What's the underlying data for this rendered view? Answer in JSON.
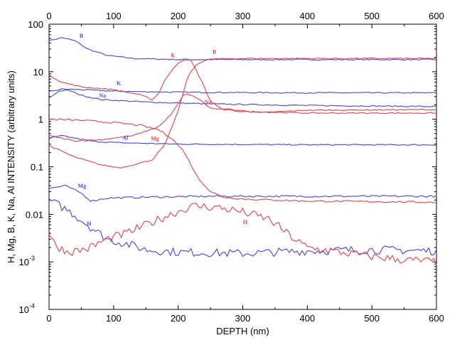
{
  "chart_data": {
    "type": "line",
    "title": "",
    "xlabel": "DEPTH (nm)",
    "ylabel": "H, Mg, B, K, Na, Al INTENSITY (arbitrary units)",
    "xlim": [
      0,
      600
    ],
    "ylim": [
      0.0001,
      100
    ],
    "yscale": "log",
    "grid": false,
    "x_ticks": [
      "0",
      "100",
      "200",
      "300",
      "400",
      "500",
      "600"
    ],
    "x_ticks_top": [
      "0",
      "100",
      "200",
      "300",
      "400",
      "500",
      "600"
    ],
    "y_ticks": [
      {
        "value": 100,
        "label": "100",
        "exp": ""
      },
      {
        "value": 10,
        "label": "10",
        "exp": ""
      },
      {
        "value": 1,
        "label": "1",
        "exp": ""
      },
      {
        "value": 0.1,
        "label": "0.1",
        "exp": ""
      },
      {
        "value": 0.01,
        "label": "0.01",
        "exp": ""
      },
      {
        "value": 0.001,
        "label": "10",
        "exp": "-3"
      },
      {
        "value": 0.0001,
        "label": "10",
        "exp": "-4"
      }
    ],
    "colors": {
      "red": "#e8474c",
      "blue": "#4a4ae8"
    },
    "series": [
      {
        "name": "B",
        "color": "#4a4ae8",
        "noise": 0.012,
        "points": [
          [
            0,
            45
          ],
          [
            20,
            52
          ],
          [
            40,
            45
          ],
          [
            60,
            30
          ],
          [
            90,
            22
          ],
          [
            130,
            19
          ],
          [
            200,
            18
          ],
          [
            300,
            18
          ],
          [
            400,
            18
          ],
          [
            500,
            18
          ],
          [
            600,
            18
          ]
        ]
      },
      {
        "name": "K",
        "color": "#4a4ae8",
        "noise": 0.012,
        "points": [
          [
            0,
            3.8
          ],
          [
            20,
            4.3
          ],
          [
            50,
            4.2
          ],
          [
            100,
            3.9
          ],
          [
            200,
            3.7
          ],
          [
            400,
            3.6
          ],
          [
            600,
            3.6
          ]
        ]
      },
      {
        "name": "Na",
        "color": "#4a4ae8",
        "noise": 0.012,
        "points": [
          [
            0,
            2.8
          ],
          [
            15,
            3.9
          ],
          [
            30,
            4.1
          ],
          [
            50,
            3.2
          ],
          [
            80,
            2.6
          ],
          [
            150,
            2.3
          ],
          [
            250,
            2.1
          ],
          [
            400,
            1.95
          ],
          [
            600,
            1.85
          ]
        ]
      },
      {
        "name": "Al",
        "color": "#4a4ae8",
        "noise": 0.012,
        "points": [
          [
            0,
            0.4
          ],
          [
            20,
            0.45
          ],
          [
            40,
            0.4
          ],
          [
            70,
            0.34
          ],
          [
            110,
            0.32
          ],
          [
            200,
            0.3
          ],
          [
            400,
            0.29
          ],
          [
            600,
            0.29
          ]
        ]
      },
      {
        "name": "Mg",
        "color": "#4a4ae8",
        "noise": 0.02,
        "points": [
          [
            0,
            0.035
          ],
          [
            25,
            0.04
          ],
          [
            50,
            0.028
          ],
          [
            65,
            0.019
          ],
          [
            90,
            0.022
          ],
          [
            150,
            0.023
          ],
          [
            250,
            0.024
          ],
          [
            400,
            0.024
          ],
          [
            600,
            0.024
          ]
        ]
      },
      {
        "name": "H",
        "color": "#4a4ae8",
        "noise": 0.09,
        "points": [
          [
            0,
            0.02
          ],
          [
            30,
            0.012
          ],
          [
            60,
            0.006
          ],
          [
            90,
            0.003
          ],
          [
            120,
            0.0024
          ],
          [
            150,
            0.0018
          ],
          [
            200,
            0.0016
          ],
          [
            300,
            0.0015
          ],
          [
            400,
            0.0017
          ],
          [
            500,
            0.0018
          ],
          [
            600,
            0.0017
          ]
        ]
      },
      {
        "name": "K",
        "color": "#e8474c",
        "noise": 0.012,
        "points": [
          [
            0,
            8.5
          ],
          [
            20,
            6
          ],
          [
            50,
            4.8
          ],
          [
            100,
            4.2
          ],
          [
            140,
            3.3
          ],
          [
            160,
            2.6
          ],
          [
            170,
            3.5
          ],
          [
            180,
            7
          ],
          [
            200,
            15.5
          ],
          [
            210,
            18
          ],
          [
            220,
            17
          ],
          [
            235,
            7
          ],
          [
            250,
            2.4
          ],
          [
            265,
            1.7
          ],
          [
            300,
            1.5
          ],
          [
            330,
            1.38
          ],
          [
            360,
            1.45
          ],
          [
            400,
            1.55
          ],
          [
            600,
            1.6
          ]
        ]
      },
      {
        "name": "B",
        "color": "#e8474c",
        "noise": 0.012,
        "points": [
          [
            0,
            0.28
          ],
          [
            40,
            0.16
          ],
          [
            80,
            0.11
          ],
          [
            110,
            0.095
          ],
          [
            130,
            0.11
          ],
          [
            160,
            0.14
          ],
          [
            180,
            0.3
          ],
          [
            200,
            1.5
          ],
          [
            215,
            8
          ],
          [
            230,
            15
          ],
          [
            250,
            18.5
          ],
          [
            300,
            19
          ],
          [
            400,
            19
          ],
          [
            600,
            19
          ]
        ]
      },
      {
        "name": "Na",
        "color": "#e8474c",
        "noise": 0.012,
        "points": [
          [
            0,
            0.45
          ],
          [
            40,
            0.35
          ],
          [
            80,
            0.37
          ],
          [
            130,
            0.45
          ],
          [
            170,
            0.7
          ],
          [
            190,
            1.3
          ],
          [
            210,
            3.5
          ],
          [
            230,
            2.8
          ],
          [
            250,
            1.7
          ],
          [
            300,
            1.45
          ],
          [
            400,
            1.35
          ],
          [
            600,
            1.35
          ]
        ]
      },
      {
        "name": "Mg",
        "color": "#e8474c",
        "noise": 0.018,
        "points": [
          [
            0,
            1.0
          ],
          [
            50,
            0.95
          ],
          [
            100,
            0.85
          ],
          [
            140,
            0.75
          ],
          [
            170,
            0.6
          ],
          [
            190,
            0.4
          ],
          [
            210,
            0.2
          ],
          [
            230,
            0.06
          ],
          [
            250,
            0.03
          ],
          [
            270,
            0.023
          ],
          [
            300,
            0.021
          ],
          [
            400,
            0.019
          ],
          [
            600,
            0.018
          ]
        ]
      },
      {
        "name": "H",
        "color": "#e8474c",
        "noise": 0.09,
        "points": [
          [
            0,
            0.004
          ],
          [
            10,
            0.0022
          ],
          [
            30,
            0.0016
          ],
          [
            60,
            0.0019
          ],
          [
            90,
            0.003
          ],
          [
            120,
            0.004
          ],
          [
            150,
            0.006
          ],
          [
            180,
            0.009
          ],
          [
            210,
            0.013
          ],
          [
            225,
            0.015
          ],
          [
            260,
            0.014
          ],
          [
            290,
            0.012
          ],
          [
            320,
            0.0095
          ],
          [
            340,
            0.008
          ],
          [
            360,
            0.005
          ],
          [
            380,
            0.003
          ],
          [
            400,
            0.002
          ],
          [
            450,
            0.0016
          ],
          [
            500,
            0.0013
          ],
          [
            550,
            0.0011
          ],
          [
            600,
            0.001
          ]
        ]
      }
    ],
    "annotations": [
      {
        "text": "B",
        "color": "#4a4ae8",
        "x": 50,
        "y": 52
      },
      {
        "text": "K",
        "color": "#4a4ae8",
        "x": 108,
        "y": 5.3
      },
      {
        "text": "Na",
        "color": "#4a4ae8",
        "x": 83,
        "y": 2.9
      },
      {
        "text": "Al",
        "color": "#4a4ae8",
        "x": 118,
        "y": 0.37
      },
      {
        "text": "Mg",
        "color": "#4a4ae8",
        "x": 51,
        "y": 0.036
      },
      {
        "text": "H",
        "color": "#4a4ae8",
        "x": 62,
        "y": 0.0058
      },
      {
        "text": "K",
        "color": "#e8474c",
        "x": 192,
        "y": 20
      },
      {
        "text": "B",
        "color": "#e8474c",
        "x": 256,
        "y": 24
      },
      {
        "text": "Na",
        "color": "#e8474c",
        "x": 246,
        "y": 2.1
      },
      {
        "text": "Mg",
        "color": "#e8474c",
        "x": 164,
        "y": 0.36
      },
      {
        "text": "H",
        "color": "#e8474c",
        "x": 304,
        "y": 0.0062
      }
    ]
  }
}
